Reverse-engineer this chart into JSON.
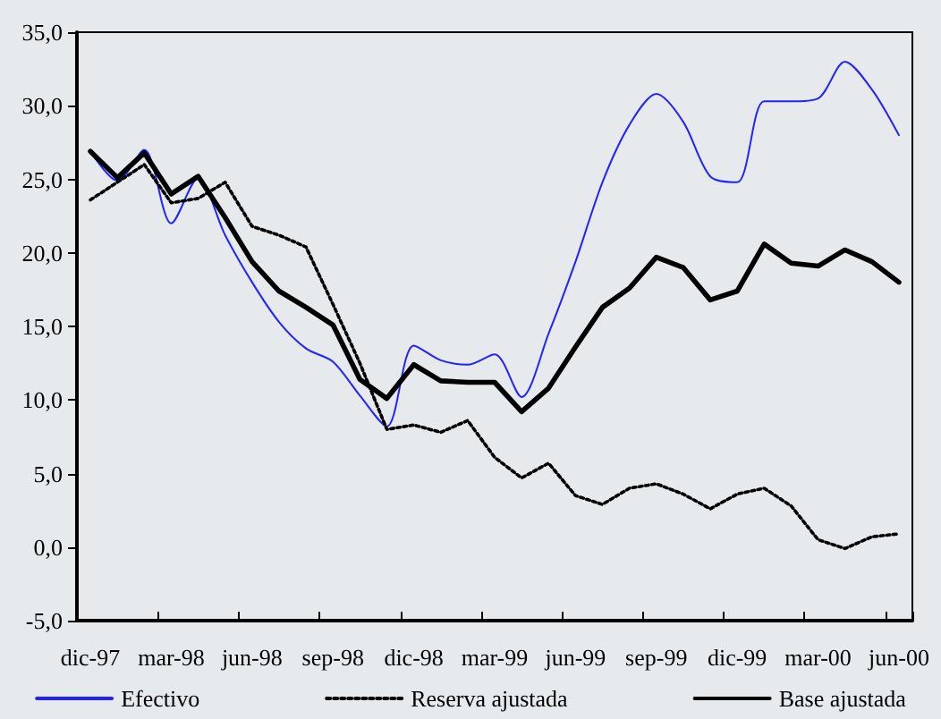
{
  "chart_data": {
    "type": "line",
    "categories": [
      "dic-97",
      null,
      null,
      "mar-98",
      null,
      null,
      "jun-98",
      null,
      null,
      "sep-98",
      null,
      null,
      "dic-98",
      null,
      null,
      "mar-99",
      null,
      null,
      "jun-99",
      null,
      null,
      "sep-99",
      null,
      null,
      "dic-99",
      null,
      null,
      "mar-00",
      null,
      null,
      "jun-00"
    ],
    "series": [
      {
        "name": "Efectivo",
        "color": "#2222ff",
        "line_style": "solid",
        "values": [
          26.9,
          24.9,
          27.0,
          22.0,
          25.1,
          21.2,
          18.0,
          15.3,
          13.5,
          12.6,
          10.3,
          8.2,
          13.7,
          12.7,
          12.4,
          13.1,
          10.2,
          14.5,
          19.4,
          24.8,
          28.7,
          30.8,
          28.9,
          25.2,
          24.8,
          30.3,
          30.3,
          30.5,
          33.0,
          31.1,
          28.0
        ]
      },
      {
        "name": "Reserva ajustada",
        "color": "#000000",
        "line_style": "dotted",
        "values": [
          23.6,
          24.8,
          26.0,
          23.4,
          23.7,
          24.8,
          21.8,
          21.2,
          20.4,
          16.5,
          12.5,
          8.0,
          8.3,
          7.8,
          8.6,
          6.1,
          4.7,
          5.7,
          3.5,
          2.9,
          4.0,
          4.3,
          3.6,
          2.6,
          3.6,
          4.0,
          2.8,
          0.5,
          -0.1,
          0.7,
          0.9
        ]
      },
      {
        "name": "Base ajustada",
        "color": "#000000",
        "line_style": "solid",
        "values": [
          26.9,
          25.1,
          26.8,
          24.0,
          25.2,
          22.4,
          19.4,
          17.4,
          16.3,
          15.1,
          11.4,
          10.1,
          12.4,
          11.3,
          11.2,
          11.2,
          9.2,
          10.8,
          13.6,
          16.3,
          17.6,
          19.7,
          19.0,
          16.8,
          17.4,
          20.6,
          19.3,
          19.1,
          20.2,
          19.4,
          18.0
        ]
      }
    ],
    "ylim": [
      -5,
      35
    ],
    "yticks": [
      {
        "value": -5,
        "label": "-5,0"
      },
      {
        "value": 0,
        "label": "0,0"
      },
      {
        "value": 5,
        "label": "5,0"
      },
      {
        "value": 10,
        "label": "10,0"
      },
      {
        "value": 15,
        "label": "15,0"
      },
      {
        "value": 20,
        "label": "20,0"
      },
      {
        "value": 25,
        "label": "25,0"
      },
      {
        "value": 30,
        "label": "30,0"
      },
      {
        "value": 35,
        "label": "35,0"
      }
    ],
    "grid": false,
    "legend": "bottom",
    "marker": "none"
  }
}
